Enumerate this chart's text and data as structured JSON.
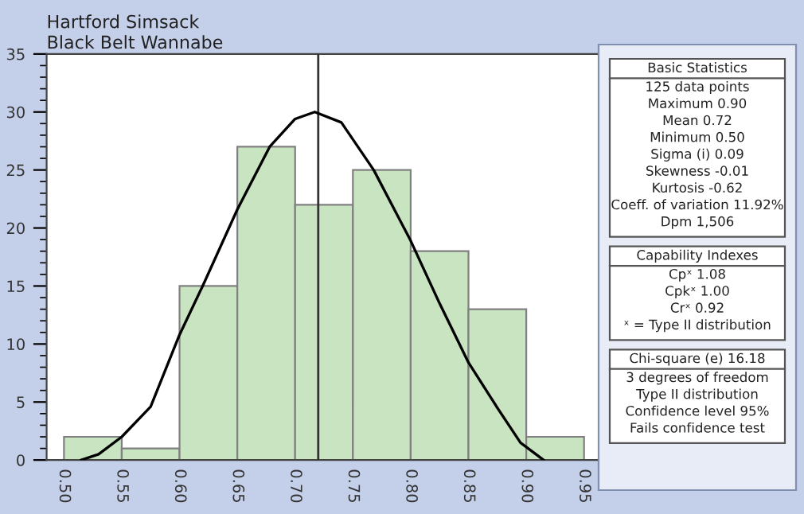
{
  "chart_data": {
    "type": "histogram",
    "title": "Hartford Simsack",
    "subtitle": "Black Belt Wannabe",
    "bins": [
      0.5,
      0.55,
      0.6,
      0.65,
      0.7,
      0.75,
      0.8,
      0.85,
      0.9,
      0.95
    ],
    "values": [
      2,
      1,
      15,
      27,
      22,
      25,
      18,
      13,
      2
    ],
    "color": "#c8e4c0",
    "series": [
      {
        "type": "line",
        "color": "#000000",
        "x": [
          0.515,
          0.53,
          0.55,
          0.575,
          0.6,
          0.62,
          0.65,
          0.678,
          0.7,
          0.717,
          0.74,
          0.768,
          0.8,
          0.825,
          0.85,
          0.875,
          0.895,
          0.915
        ],
        "values": [
          0,
          0.5,
          2,
          4.6,
          10.8,
          15,
          21.6,
          27,
          29.4,
          30,
          29.1,
          25,
          18.9,
          13.5,
          8.4,
          4.5,
          1.5,
          0
        ]
      }
    ],
    "ref_lines": [
      {
        "axis": "x",
        "value": 0.72,
        "color": "#333333"
      }
    ],
    "xlim": [
      0.485,
      0.965
    ],
    "ylim": [
      0,
      35
    ],
    "xticks": [
      {
        "value": 0.5,
        "label": "0.50"
      },
      {
        "value": 0.55,
        "label": "0.55"
      },
      {
        "value": 0.6,
        "label": "0.60"
      },
      {
        "value": 0.65,
        "label": "0.65"
      },
      {
        "value": 0.7,
        "label": "0.70"
      },
      {
        "value": 0.75,
        "label": "0.75"
      },
      {
        "value": 0.8,
        "label": "0.80"
      },
      {
        "value": 0.85,
        "label": "0.85"
      },
      {
        "value": 0.9,
        "label": "0.90"
      },
      {
        "value": 0.95,
        "label": "0.95"
      }
    ],
    "yticks": [
      0,
      5,
      10,
      15,
      20,
      25,
      30,
      35
    ],
    "grid": false,
    "legend": false,
    "annotations": [
      "Basic Statistics",
      "125 data points",
      "Maximum 0.90",
      "Mean 0.72",
      "Minimum 0.50",
      "Sigma (i) 0.09",
      "Skewness -0.01",
      "Kurtosis -0.62",
      "Coeff. of variation 11.92%",
      "Dpm 1,506",
      "Capability Indexes",
      "Cpˣ 1.08",
      "Cpkˣ 1.00",
      "Crˣ 0.92",
      "ˣ = Type II distribution",
      "Chi-square (e) 16.18",
      "3 degrees of freedom",
      "Type II distribution",
      "Confidence level 95%",
      "Fails confidence test"
    ]
  }
}
